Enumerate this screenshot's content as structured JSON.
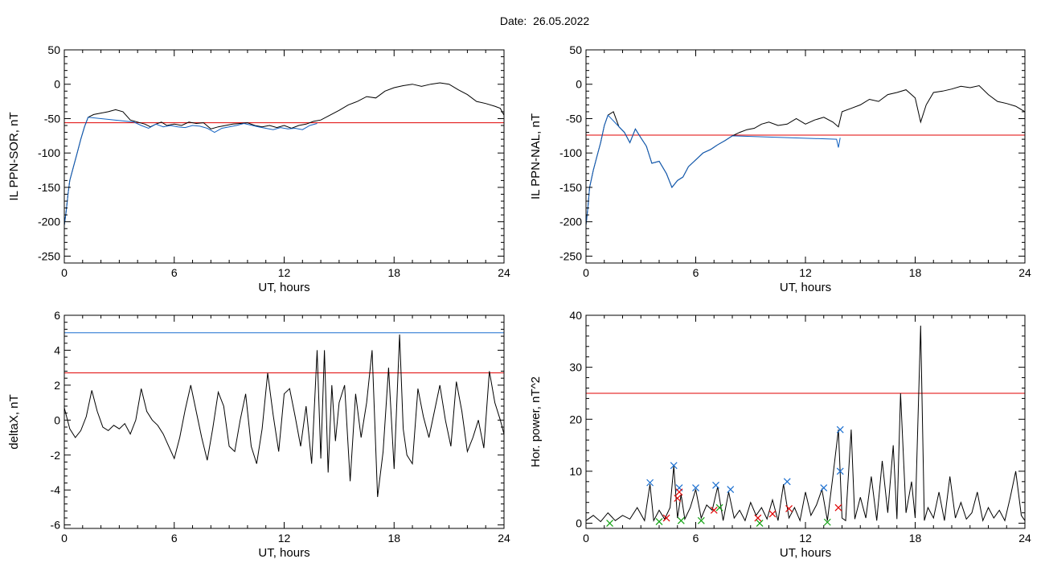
{
  "header": {
    "date_label": "Date:",
    "date_value": "26.05.2022"
  },
  "colors": {
    "data_line": "#000000",
    "highlight_line": "#1060c0",
    "threshold_red": "#e00000",
    "threshold_blue": "#1a6fd0",
    "marker_blue": "#1a6fd0",
    "marker_red": "#e00000",
    "marker_green": "#10a010"
  },
  "chart_data": [
    {
      "type": "line",
      "id": "ppn-sor",
      "title": "",
      "xlabel": "UT, hours",
      "ylabel": "IL PPN-SOR, nT",
      "xlim": [
        0,
        24
      ],
      "ylim": [
        -260,
        50
      ],
      "xticks": [
        0,
        6,
        12,
        18,
        24
      ],
      "yticks": [
        -250,
        -200,
        -150,
        -100,
        -50,
        0,
        50
      ],
      "threshold_red": -56,
      "series": [
        {
          "role": "data",
          "x": [
            0,
            0.1,
            0.2,
            0.3,
            0.5,
            0.7,
            0.9,
            1.1,
            1.3,
            1.6,
            2.0,
            2.4,
            2.8,
            3.2,
            3.6,
            4.0,
            4.4,
            4.7,
            5.0,
            5.3,
            5.6,
            6.0,
            6.4,
            6.8,
            7.2,
            7.6,
            8.0,
            8.4,
            8.8,
            9.2,
            9.6,
            10.0,
            10.4,
            10.8,
            11.2,
            11.6,
            12.0,
            12.4,
            12.8,
            13.2,
            13.6,
            14.0,
            14.5,
            15.0,
            15.5,
            16.0,
            16.5,
            17.0,
            17.5,
            18.0,
            18.5,
            19.0,
            19.5,
            20.0,
            20.5,
            21.0,
            21.5,
            22.0,
            22.5,
            23.0,
            23.5,
            23.8,
            24.0
          ],
          "y": [
            -205,
            -185,
            -160,
            -140,
            -120,
            -100,
            -80,
            -62,
            -48,
            -44,
            -42,
            -40,
            -37,
            -40,
            -52,
            -55,
            -58,
            -62,
            -58,
            -55,
            -60,
            -58,
            -60,
            -55,
            -57,
            -56,
            -65,
            -62,
            -60,
            -58,
            -57,
            -56,
            -60,
            -62,
            -60,
            -63,
            -60,
            -64,
            -60,
            -58,
            -54,
            -52,
            -45,
            -38,
            -30,
            -25,
            -18,
            -20,
            -10,
            -5,
            -2,
            0,
            -3,
            0,
            2,
            0,
            -8,
            -15,
            -25,
            -28,
            -32,
            -35,
            -45
          ]
        },
        {
          "role": "highlight",
          "x": [
            0,
            0.1,
            0.2,
            0.3,
            0.5,
            0.7,
            0.9,
            1.1,
            1.3,
            3.8,
            4.2,
            4.6,
            5.0,
            5.4,
            5.8,
            6.2,
            6.6,
            7.0,
            7.4,
            7.8,
            8.2,
            8.6,
            9.0,
            9.4,
            9.8,
            10.6,
            11.0,
            11.4,
            11.8,
            12.2,
            12.6,
            13.0,
            13.4,
            13.8
          ],
          "y": [
            -205,
            -185,
            -160,
            -140,
            -120,
            -100,
            -80,
            -62,
            -48,
            -55,
            -60,
            -64,
            -58,
            -62,
            -60,
            -62,
            -63,
            -60,
            -61,
            -64,
            -70,
            -64,
            -62,
            -60,
            -57,
            -62,
            -64,
            -66,
            -63,
            -65,
            -64,
            -66,
            -60,
            -57
          ]
        }
      ]
    },
    {
      "type": "line",
      "id": "ppn-nal",
      "title": "",
      "xlabel": "UT, hours",
      "ylabel": "IL PPN-NAL, nT",
      "xlim": [
        0,
        24
      ],
      "ylim": [
        -260,
        50
      ],
      "xticks": [
        0,
        6,
        12,
        18,
        24
      ],
      "yticks": [
        -250,
        -200,
        -150,
        -100,
        -50,
        0,
        50
      ],
      "threshold_red": -74,
      "series": [
        {
          "role": "data",
          "x": [
            0,
            0.1,
            0.2,
            0.4,
            0.6,
            0.8,
            1.0,
            1.2,
            1.5,
            1.8,
            2.1,
            2.4,
            2.7,
            3.0,
            3.3,
            3.6,
            4.0,
            4.4,
            4.7,
            5.0,
            5.3,
            5.6,
            6.0,
            6.4,
            6.8,
            7.2,
            7.6,
            8.0,
            8.4,
            8.8,
            9.2,
            9.6,
            10.0,
            10.5,
            11.0,
            11.5,
            12.0,
            12.5,
            13.0,
            13.5,
            13.8,
            14.0,
            14.5,
            15.0,
            15.5,
            16.0,
            16.5,
            17.0,
            17.5,
            18.0,
            18.3,
            18.6,
            19.0,
            19.5,
            20.0,
            20.5,
            21.0,
            21.5,
            22.0,
            22.5,
            23.0,
            23.5,
            24.0
          ],
          "y": [
            -205,
            -180,
            -150,
            -125,
            -105,
            -85,
            -60,
            -45,
            -40,
            -62,
            -70,
            -85,
            -65,
            -78,
            -90,
            -115,
            -112,
            -130,
            -150,
            -140,
            -135,
            -120,
            -110,
            -100,
            -95,
            -88,
            -82,
            -75,
            -70,
            -66,
            -64,
            -58,
            -55,
            -60,
            -58,
            -50,
            -58,
            -52,
            -48,
            -55,
            -62,
            -40,
            -35,
            -30,
            -22,
            -25,
            -15,
            -12,
            -8,
            -20,
            -55,
            -30,
            -12,
            -10,
            -7,
            -3,
            -5,
            -2,
            -15,
            -25,
            -28,
            -32,
            -40
          ]
        },
        {
          "role": "highlight",
          "x": [
            0,
            0.1,
            0.2,
            0.4,
            0.6,
            0.8,
            1.0,
            1.2,
            2.1,
            2.4,
            2.7,
            3.0,
            3.3,
            3.6,
            4.0,
            4.4,
            4.7,
            5.0,
            5.3,
            5.6,
            6.0,
            6.4,
            6.8,
            7.2,
            7.6,
            8.0,
            13.7,
            13.8,
            13.9
          ],
          "y": [
            -205,
            -180,
            -150,
            -125,
            -105,
            -85,
            -60,
            -45,
            -70,
            -85,
            -65,
            -78,
            -90,
            -115,
            -112,
            -130,
            -150,
            -140,
            -135,
            -120,
            -110,
            -100,
            -95,
            -88,
            -82,
            -75,
            -80,
            -92,
            -78
          ]
        }
      ]
    },
    {
      "type": "line",
      "id": "deltax",
      "title": "",
      "xlabel": "UT, hours",
      "ylabel": "deltaX, nT",
      "xlim": [
        0,
        24
      ],
      "ylim": [
        -6.2,
        6
      ],
      "xticks": [
        0,
        6,
        12,
        18,
        24
      ],
      "yticks": [
        -6,
        -4,
        -2,
        0,
        2,
        4,
        6
      ],
      "threshold_red": 2.7,
      "threshold_blue": 5.0,
      "series": [
        {
          "role": "data",
          "x": [
            0,
            0.3,
            0.6,
            0.9,
            1.2,
            1.5,
            1.8,
            2.1,
            2.4,
            2.7,
            3.0,
            3.3,
            3.6,
            3.9,
            4.2,
            4.5,
            4.8,
            5.1,
            5.4,
            5.7,
            6.0,
            6.3,
            6.6,
            6.9,
            7.2,
            7.5,
            7.8,
            8.1,
            8.4,
            8.7,
            9.0,
            9.3,
            9.6,
            9.9,
            10.2,
            10.5,
            10.8,
            11.1,
            11.4,
            11.7,
            12.0,
            12.3,
            12.6,
            12.9,
            13.2,
            13.5,
            13.8,
            14.0,
            14.2,
            14.4,
            14.6,
            14.8,
            15.0,
            15.3,
            15.6,
            15.9,
            16.2,
            16.5,
            16.8,
            17.1,
            17.4,
            17.7,
            18.0,
            18.3,
            18.5,
            18.7,
            19.0,
            19.3,
            19.6,
            19.9,
            20.2,
            20.5,
            20.8,
            21.1,
            21.4,
            21.7,
            22.0,
            22.3,
            22.6,
            22.9,
            23.2,
            23.5,
            23.8,
            24.0
          ],
          "y": [
            0.7,
            -0.5,
            -1.0,
            -0.6,
            0.2,
            1.7,
            0.5,
            -0.4,
            -0.6,
            -0.3,
            -0.5,
            -0.2,
            -0.8,
            0.0,
            1.8,
            0.5,
            0.0,
            -0.3,
            -0.8,
            -1.5,
            -2.2,
            -1.0,
            0.6,
            2.0,
            0.5,
            -1.0,
            -2.3,
            -0.5,
            1.6,
            0.8,
            -1.5,
            -1.8,
            0.0,
            1.5,
            -1.5,
            -2.5,
            -0.5,
            2.7,
            0.3,
            -1.8,
            1.5,
            1.8,
            0.2,
            -1.5,
            0.8,
            -2.5,
            4.0,
            -2.2,
            4.0,
            -3.0,
            2.0,
            -1.2,
            1.0,
            2.0,
            -3.5,
            1.5,
            -1.0,
            1.0,
            4.0,
            -4.4,
            -1.8,
            3.0,
            -2.8,
            4.9,
            -0.5,
            -2.0,
            -2.5,
            1.8,
            0.2,
            -1.0,
            0.5,
            2.0,
            0.0,
            -1.5,
            2.2,
            0.5,
            -1.8,
            -1.0,
            0.0,
            -1.6,
            2.8,
            1.0,
            0.0,
            -0.8
          ]
        }
      ]
    },
    {
      "type": "line",
      "id": "hor-power",
      "title": "",
      "xlabel": "UT, hours",
      "ylabel": "Hor. power, nT^2",
      "xlim": [
        0,
        24
      ],
      "ylim": [
        -1,
        40
      ],
      "xticks": [
        0,
        6,
        12,
        18,
        24
      ],
      "yticks": [
        0,
        10,
        20,
        30,
        40
      ],
      "threshold_red": 25,
      "series": [
        {
          "role": "data",
          "x": [
            0,
            0.4,
            0.8,
            1.2,
            1.6,
            2.0,
            2.4,
            2.8,
            3.2,
            3.5,
            3.7,
            4.0,
            4.3,
            4.6,
            4.8,
            5.0,
            5.2,
            5.4,
            5.7,
            6.0,
            6.3,
            6.6,
            6.9,
            7.2,
            7.5,
            7.8,
            8.1,
            8.4,
            8.7,
            9.0,
            9.3,
            9.6,
            9.9,
            10.2,
            10.5,
            10.8,
            11.1,
            11.4,
            11.7,
            12.0,
            12.3,
            12.6,
            12.9,
            13.2,
            13.5,
            13.8,
            14.0,
            14.2,
            14.5,
            14.7,
            15.0,
            15.3,
            15.6,
            15.9,
            16.2,
            16.5,
            16.8,
            17.0,
            17.2,
            17.5,
            17.8,
            18.0,
            18.3,
            18.5,
            18.7,
            19.0,
            19.3,
            19.6,
            19.9,
            20.2,
            20.5,
            20.8,
            21.1,
            21.4,
            21.7,
            22.0,
            22.3,
            22.6,
            22.9,
            23.2,
            23.5,
            23.8,
            24.0
          ],
          "y": [
            0.5,
            1.5,
            0.3,
            2.0,
            0.5,
            1.5,
            0.8,
            3.0,
            0.5,
            7.5,
            0.5,
            2.5,
            0.8,
            3.0,
            11.0,
            1.0,
            5.5,
            0.8,
            3.0,
            6.5,
            1.0,
            3.5,
            2.5,
            7.0,
            0.5,
            6.0,
            1.0,
            2.5,
            0.5,
            4.0,
            1.5,
            3.0,
            0.8,
            4.5,
            0.5,
            7.5,
            1.0,
            3.0,
            0.5,
            6.0,
            1.5,
            3.5,
            6.5,
            0.5,
            9.0,
            18.0,
            1.0,
            0.5,
            18.0,
            0.8,
            5.0,
            1.0,
            9.0,
            0.5,
            12.0,
            2.0,
            15.0,
            0.8,
            25.0,
            2.0,
            8.0,
            1.0,
            38.0,
            0.5,
            3.0,
            1.0,
            6.0,
            0.5,
            9.0,
            1.0,
            4.0,
            0.8,
            2.0,
            6.0,
            0.5,
            3.0,
            1.0,
            2.5,
            0.5,
            5.0,
            10.0,
            1.5,
            0.5
          ]
        }
      ],
      "markers": [
        {
          "color": "blue",
          "x": [
            3.5,
            4.8,
            5.1,
            6.0,
            7.1,
            7.9,
            11.0,
            13.0,
            13.9,
            13.9
          ],
          "y": [
            7.8,
            11.1,
            6.8,
            6.8,
            7.3,
            6.5,
            8.0,
            6.8,
            18.0,
            10.0
          ]
        },
        {
          "color": "red",
          "x": [
            4.4,
            5.0,
            5.1,
            7.0,
            9.4,
            10.2,
            11.1,
            13.8
          ],
          "y": [
            1.0,
            4.8,
            6.0,
            2.5,
            1.0,
            1.8,
            2.8,
            3.0
          ]
        },
        {
          "color": "green",
          "x": [
            1.3,
            4.0,
            5.2,
            6.3,
            7.3,
            9.5,
            13.2
          ],
          "y": [
            0.0,
            0.3,
            0.5,
            0.5,
            3.0,
            0.0,
            0.2
          ]
        }
      ]
    }
  ]
}
